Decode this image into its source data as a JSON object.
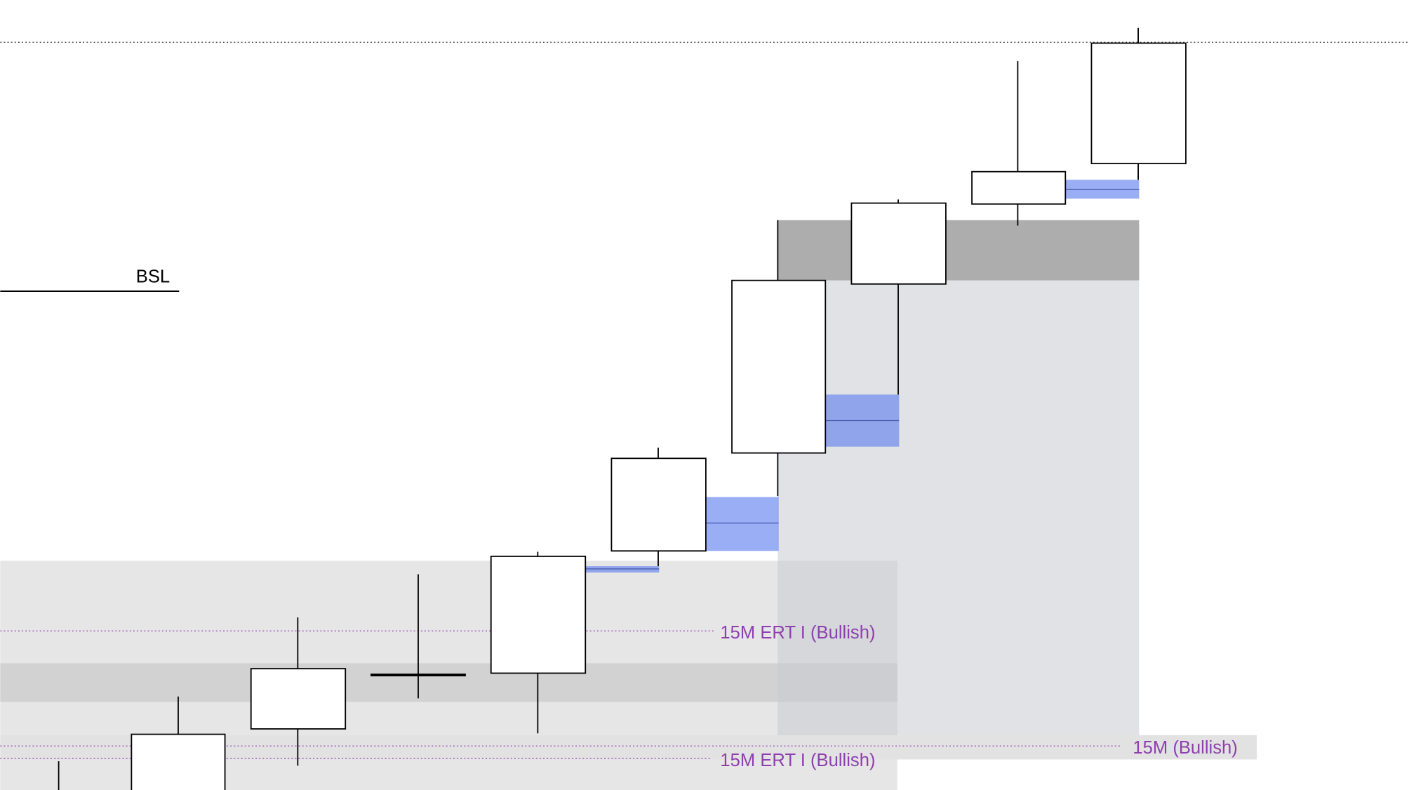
{
  "labels": {
    "bsl": "BSL",
    "ert_upper": "15M ERT I (Bullish)",
    "ert_lower": "15M ERT I (Bullish)",
    "fifteen_min": "15M (Bullish)"
  }
}
